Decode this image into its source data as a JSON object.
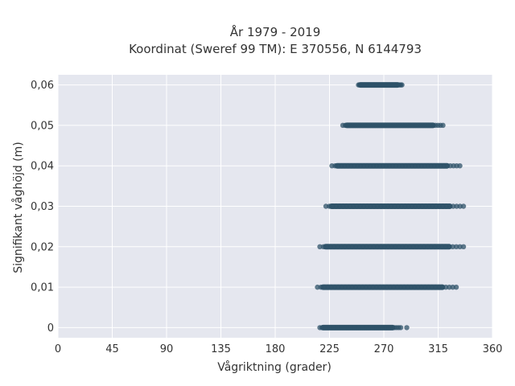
{
  "chart_data": {
    "type": "scatter",
    "title": "År 1979 - 2019",
    "subtitle": "Koordinat (Sweref 99 TM): E 370556, N 6144793",
    "xlabel": "Vågriktning (grader)",
    "ylabel": "Signifikant våghöjd (m)",
    "xlim": [
      0,
      360
    ],
    "ylim": [
      -0.0025,
      0.0625
    ],
    "x_ticks": [
      0,
      45,
      90,
      135,
      180,
      225,
      270,
      315,
      360
    ],
    "x_tick_labels": [
      "0",
      "45",
      "90",
      "135",
      "180",
      "225",
      "270",
      "315",
      "360"
    ],
    "y_ticks": [
      0,
      0.01,
      0.02,
      0.03,
      0.04,
      0.05,
      0.06
    ],
    "y_tick_labels": [
      "0",
      "0,01",
      "0,02",
      "0,03",
      "0,04",
      "0,05",
      "0,06"
    ],
    "grid": true,
    "marker_color": "#2e5268",
    "plot_background": "#e5e7ef",
    "bands": [
      {
        "y": 0,
        "x_min": 217,
        "x_max": 284,
        "outliers": [
          289
        ]
      },
      {
        "y": 0.01,
        "x_min": 215,
        "x_max": 330,
        "outliers": []
      },
      {
        "y": 0.02,
        "x_min": 217,
        "x_max": 336,
        "outliers": []
      },
      {
        "y": 0.03,
        "x_min": 222,
        "x_max": 336,
        "outliers": []
      },
      {
        "y": 0.04,
        "x_min": 227,
        "x_max": 333,
        "outliers": []
      },
      {
        "y": 0.05,
        "x_min": 236,
        "x_max": 319,
        "outliers": []
      },
      {
        "y": 0.06,
        "x_min": 249,
        "x_max": 285,
        "outliers": []
      }
    ]
  }
}
